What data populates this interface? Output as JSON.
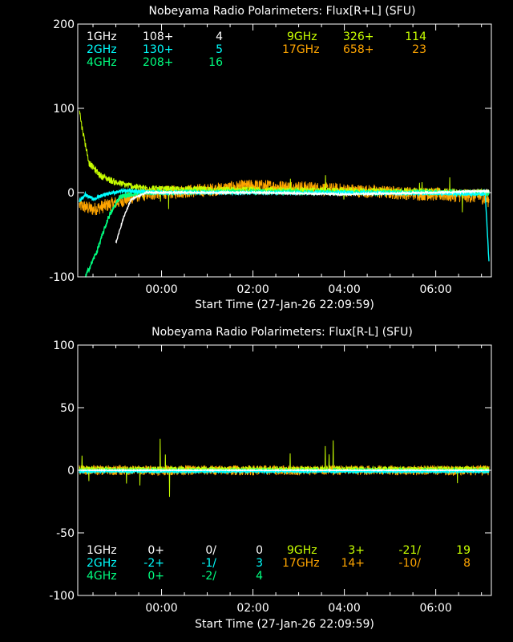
{
  "colors": {
    "1GHz": "#ffffff",
    "2GHz": "#00ffff",
    "4GHz": "#00ff80",
    "9GHz": "#c8ff00",
    "17GHz": "#ffa500",
    "axis": "#ffffff",
    "background": "#000000"
  },
  "chart_data": [
    {
      "type": "line",
      "title": "Nobeyama Radio Polarimeters: Flux[R+L] (SFU)",
      "xlabel": "Start Time (27-Jan-26 22:09:59)",
      "ylabel": "",
      "xlim": [
        "22:09:59",
        "07:13"
      ],
      "ylim": [
        -100,
        200
      ],
      "yticks": [
        "200",
        "100",
        "0",
        "-100"
      ],
      "xticks": [
        "00:00",
        "02:00",
        "04:00",
        "06:00"
      ],
      "grid": false,
      "legend": [
        {
          "name": "1GHz",
          "a": "108+",
          "b": "4"
        },
        {
          "name": "2GHz",
          "a": "130+",
          "b": "5"
        },
        {
          "name": "4GHz",
          "a": "208+",
          "b": "16"
        },
        {
          "name": "9GHz",
          "a": "326+",
          "b": "114"
        },
        {
          "name": "17GHz",
          "a": "658+",
          "b": "23"
        }
      ],
      "series": [
        {
          "name": "17GHz",
          "noise": 8,
          "points": [
            [
              "22:12",
              -15
            ],
            [
              "22:30",
              -20
            ],
            [
              "23:00",
              -12
            ],
            [
              "23:30",
              -3
            ],
            [
              "00:00",
              0
            ],
            [
              "01:00",
              3
            ],
            [
              "02:00",
              8
            ],
            [
              "03:00",
              6
            ],
            [
              "04:00",
              3
            ],
            [
              "05:00",
              0
            ],
            [
              "06:00",
              -2
            ],
            [
              "07:00",
              -5
            ],
            [
              "07:10",
              -10
            ]
          ]
        },
        {
          "name": "9GHz",
          "noise": 4,
          "points": [
            [
              "22:12",
              100
            ],
            [
              "22:15",
              80
            ],
            [
              "22:25",
              35
            ],
            [
              "22:40",
              20
            ],
            [
              "23:00",
              12
            ],
            [
              "23:30",
              6
            ],
            [
              "00:00",
              4
            ],
            [
              "02:00",
              3
            ],
            [
              "04:00",
              2
            ],
            [
              "06:00",
              1
            ],
            [
              "07:10",
              0
            ]
          ]
        },
        {
          "name": "4GHz",
          "noise": 3,
          "points": [
            [
              "22:20",
              -100
            ],
            [
              "22:35",
              -70
            ],
            [
              "22:50",
              -30
            ],
            [
              "23:05",
              -5
            ],
            [
              "23:30",
              0
            ],
            [
              "02:00",
              1
            ],
            [
              "04:00",
              0
            ],
            [
              "06:00",
              0
            ],
            [
              "07:10",
              0
            ]
          ]
        },
        {
          "name": "2GHz",
          "noise": 2,
          "points": [
            [
              "22:12",
              -10
            ],
            [
              "22:20",
              -2
            ],
            [
              "22:30",
              -8
            ],
            [
              "22:45",
              -2
            ],
            [
              "23:10",
              2
            ],
            [
              "00:00",
              0
            ],
            [
              "02:00",
              0
            ],
            [
              "04:00",
              0
            ],
            [
              "06:00",
              -1
            ],
            [
              "07:05",
              -2
            ],
            [
              "07:10",
              -85
            ]
          ]
        },
        {
          "name": "1GHz",
          "noise": 1,
          "points": [
            [
              "23:00",
              -60
            ],
            [
              "23:10",
              -30
            ],
            [
              "23:20",
              -8
            ],
            [
              "23:40",
              0
            ],
            [
              "02:00",
              0
            ],
            [
              "04:00",
              -2
            ],
            [
              "06:00",
              0
            ],
            [
              "07:10",
              2
            ]
          ]
        }
      ]
    },
    {
      "type": "line",
      "title": "Nobeyama Radio Polarimeters: Flux[R-L] (SFU)",
      "xlabel": "Start Time (27-Jan-26 22:09:59)",
      "ylabel": "",
      "xlim": [
        "22:09:59",
        "07:13"
      ],
      "ylim": [
        -100,
        100
      ],
      "yticks": [
        "100",
        "50",
        "0",
        "-50",
        "-100"
      ],
      "xticks": [
        "00:00",
        "02:00",
        "04:00",
        "06:00"
      ],
      "grid": false,
      "legend": [
        {
          "name": "1GHz",
          "a": "0+",
          "b": "0/",
          "c": "0"
        },
        {
          "name": "2GHz",
          "a": "-2+",
          "b": "-1/",
          "c": "3"
        },
        {
          "name": "4GHz",
          "a": "0+",
          "b": "-2/",
          "c": "4"
        },
        {
          "name": "9GHz",
          "a": "3+",
          "b": "-21/",
          "c": "19"
        },
        {
          "name": "17GHz",
          "a": "14+",
          "b": "-10/",
          "c": "8"
        }
      ],
      "series": [
        {
          "name": "17GHz",
          "noise": 4,
          "points": [
            [
              "22:12",
              0
            ],
            [
              "07:10",
              0
            ]
          ]
        },
        {
          "name": "9GHz",
          "noise": 2,
          "points": [
            [
              "22:12",
              1
            ],
            [
              "07:10",
              1
            ]
          ]
        },
        {
          "name": "4GHz",
          "noise": 0.8,
          "points": [
            [
              "22:12",
              0
            ],
            [
              "07:10",
              0
            ]
          ]
        },
        {
          "name": "2GHz",
          "noise": 0.8,
          "points": [
            [
              "22:12",
              -1
            ],
            [
              "07:10",
              -1
            ]
          ]
        },
        {
          "name": "1GHz",
          "noise": 0.3,
          "points": [
            [
              "22:12",
              0
            ],
            [
              "07:10",
              0
            ]
          ]
        }
      ]
    }
  ]
}
